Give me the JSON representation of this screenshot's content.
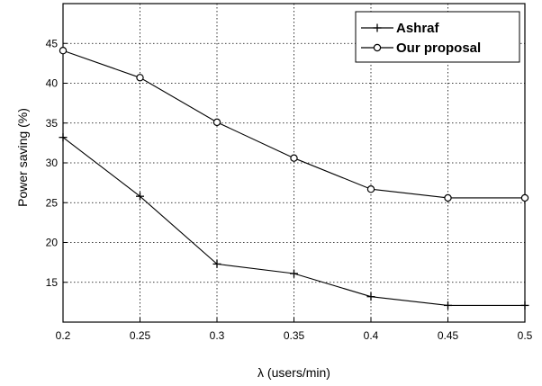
{
  "chart_data": {
    "type": "line",
    "title": "",
    "xlabel": "λ  (users/min)",
    "ylabel": "Power saving (%)",
    "x": [
      0.2,
      0.25,
      0.3,
      0.35,
      0.4,
      0.45,
      0.5
    ],
    "x_tick_labels": [
      "0.2",
      "0.25",
      "0.3",
      "0.35",
      "0.4",
      "0.45",
      "0.5"
    ],
    "y_tick_labels": [
      "15",
      "20",
      "25",
      "30",
      "35",
      "40",
      "45"
    ],
    "xlim": [
      0.2,
      0.5
    ],
    "ylim": [
      10,
      50
    ],
    "y_ticks": [
      15,
      20,
      25,
      30,
      35,
      40,
      45
    ],
    "grid": true,
    "legend_position": "top-right",
    "series": [
      {
        "name": "Ashraf",
        "marker": "plus",
        "color": "#000000",
        "values": [
          33.2,
          25.8,
          17.3,
          16.1,
          13.2,
          12.1,
          12.1
        ]
      },
      {
        "name": "Our proposal",
        "marker": "circle",
        "color": "#000000",
        "values": [
          44.1,
          40.7,
          35.1,
          30.6,
          26.7,
          25.6,
          25.6
        ]
      }
    ]
  }
}
